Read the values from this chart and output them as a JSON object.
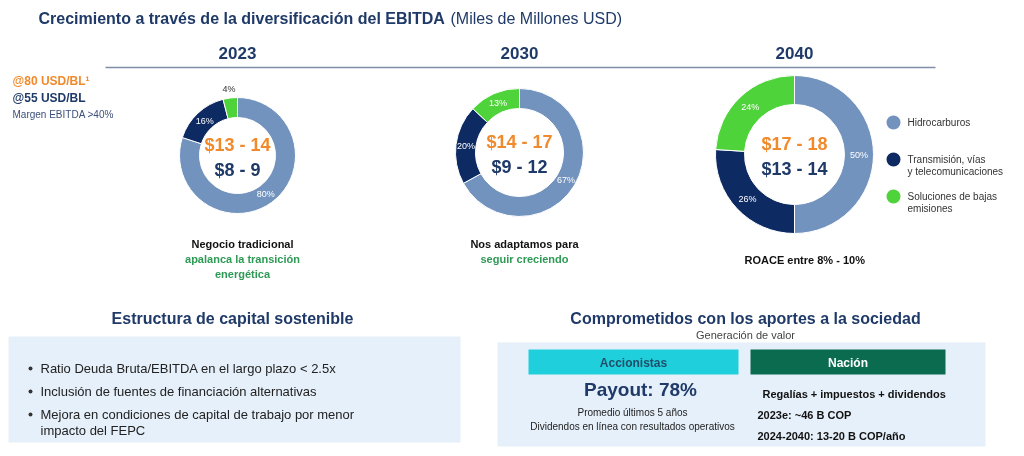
{
  "chart_data": [
    {
      "type": "other",
      "title": "Crecimiento a través de la diversificación del EBITDA",
      "subtitle": "(Miles de Millones USD)",
      "annotations": [
        "@80 USD/BL¹",
        "@55 USD/BL",
        "Margen EBITDA >40%"
      ]
    },
    {
      "type": "donut",
      "title": "2023",
      "categories": [
        null,
        null,
        null
      ],
      "values": [
        80,
        16,
        4
      ],
      "colors": [
        "#7393bf",
        "#0d2a63",
        "#4fd33a"
      ],
      "value_labels": [
        "80%",
        "16%",
        "4%"
      ],
      "annotations": [
        "$13 - 14",
        "$8 - 9",
        "Negocio tradicional",
        "apalanca la transición",
        "energética"
      ]
    },
    {
      "type": "donut",
      "title": "2030",
      "categories": [
        null,
        null,
        null
      ],
      "values": [
        67,
        20,
        13
      ],
      "colors": [
        "#7393bf",
        "#0d2a63",
        "#4fd33a"
      ],
      "value_labels": [
        "67%",
        "20%",
        "13%"
      ],
      "annotations": [
        "$14 - 17",
        "$9 - 12",
        "Nos adaptamos para",
        "seguir creciendo"
      ]
    },
    {
      "type": "donut",
      "title": "2040",
      "categories": [
        "Hidrocarburos",
        "Transmisión, vías\ny telecomunicaciones",
        "Soluciones de bajas\nemisiones"
      ],
      "values": [
        50,
        26,
        24
      ],
      "colors": [
        "#7393bf",
        "#0d2a63",
        "#4fd33a"
      ],
      "value_labels": [
        "50%",
        "26%",
        "24%"
      ],
      "legend": "right",
      "annotations": [
        "$17 - 18",
        "$13 - 14",
        "ROACE entre 8% - 10%"
      ]
    },
    {
      "type": "other",
      "title": "Estructura de capital sostenible",
      "annotations": [
        "Ratio Deuda Bruta/EBITDA en el largo plazo < 2.5x",
        "Inclusión de fuentes de financiación alternativas",
        "Mejora en condiciones de capital de trabajo por menor\nimpacto del FEPC"
      ]
    },
    {
      "type": "other",
      "title": "Comprometidos con los aportes a la sociedad",
      "subtitle": "Generación de valor",
      "annotations": [
        "Accionistas",
        "Nación",
        "Payout: 78%",
        "Promedio últimos 5 años",
        "Dividendos en línea con resultados operativos",
        "Regalías + impuestos + dividendos",
        "2023e: ~46 B COP",
        "2024-2040: 13-20 B COP/año"
      ]
    }
  ]
}
